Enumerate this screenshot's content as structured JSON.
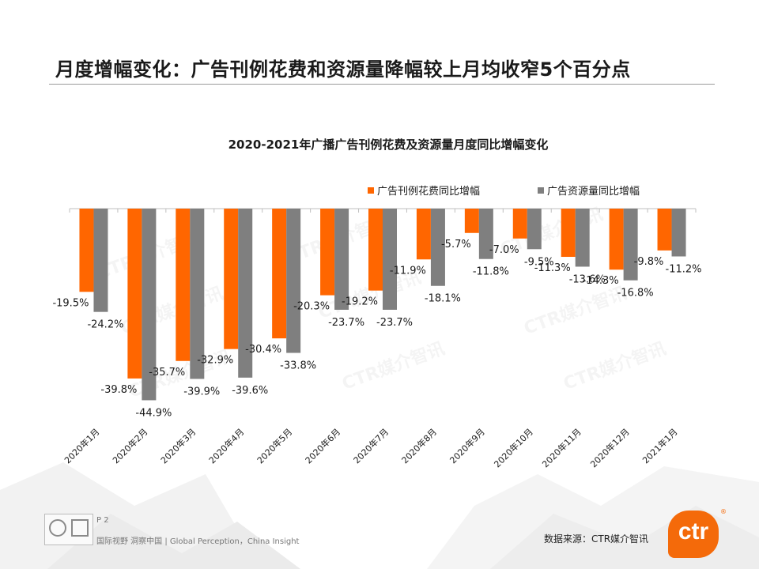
{
  "slide": {
    "title": "月度增幅变化：广告刊例花费和资源量降幅较上月均收窄5个百分点"
  },
  "footer": {
    "page": "P 2",
    "slogan": "国际视野 洞察中国 | Global Perception，China Insight",
    "source": "数据来源：CTR媒介智讯"
  },
  "brand": {
    "logo_text": "ctr",
    "reg_mark": "®",
    "watermark": "CTR媒介智讯"
  },
  "colors": {
    "spend": "#ff6600",
    "volume": "#7f7f7f",
    "brand_orange": "#f46a0a"
  },
  "chart_data": {
    "type": "bar",
    "title": "2020-2021年广播广告刊例花费及资源量月度同比增幅变化",
    "categories": [
      "2020年1月",
      "2020年2月",
      "2020年3月",
      "2020年4月",
      "2020年5月",
      "2020年6月",
      "2020年7月",
      "2020年8月",
      "2020年9月",
      "2020年10月",
      "2020年11月",
      "2020年12月",
      "2021年1月"
    ],
    "series": [
      {
        "name": "广告刊例花费同比增幅",
        "values": [
          -19.5,
          -39.8,
          -35.7,
          -32.9,
          -30.4,
          -20.3,
          -19.2,
          -11.9,
          -5.7,
          -7.0,
          -11.3,
          -14.3,
          -9.8
        ],
        "labels": [
          "-19.5%",
          "-39.8%",
          "-35.7%",
          "-32.9%",
          "-30.4%",
          "-20.3%",
          "-19.2%",
          "-11.9%",
          "-5.7%",
          "-7.0%",
          "-11.3%",
          "-14.3%",
          "-9.8%"
        ]
      },
      {
        "name": "广告资源量同比增幅",
        "values": [
          -24.2,
          -44.9,
          -39.9,
          -39.6,
          -33.8,
          -23.7,
          -23.7,
          -18.1,
          -11.8,
          -9.5,
          -13.6,
          -16.8,
          -11.2
        ],
        "labels": [
          "-24.2%",
          "-44.9%",
          "-39.9%",
          "-39.6%",
          "-33.8%",
          "-23.7%",
          "-23.7%",
          "-18.1%",
          "-11.8%",
          "-9.5%",
          "-13.6%",
          "-16.8%",
          "-11.2%"
        ]
      }
    ],
    "ylim": [
      -50,
      0
    ],
    "unit": "%",
    "grid": false,
    "legend": "top-right"
  }
}
